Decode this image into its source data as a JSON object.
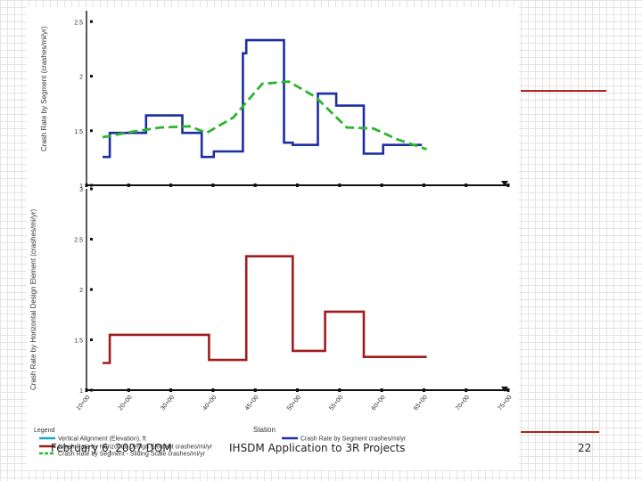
{
  "colors": {
    "segment": "#1c2fa0",
    "trend": "#2db52d",
    "horizontal": "#a01c1c",
    "legend_vertical": "#1aa6c9",
    "accent": "#b22222"
  },
  "footer": {
    "date": "February 6, 2007 DQM",
    "title": "IHSDM Application to 3R Projects",
    "page": "22"
  },
  "chart_data": [
    {
      "type": "line",
      "step": true,
      "ylabel": "Crash Rate by Segment (crashes/mi/yr)",
      "ylim": [
        1,
        2.6
      ],
      "yticks": [
        "1",
        "1.5",
        "2",
        "2.5"
      ],
      "xlim": [
        0,
        75
      ],
      "series": [
        {
          "name": "Crash Rate by Segment",
          "style": "step",
          "x": [
            0,
            1.5,
            1.5,
            9,
            9,
            16.5,
            16.5,
            20.5,
            20.5,
            23,
            23,
            29,
            29,
            29.7,
            29.7,
            37.5,
            37.5,
            39.3,
            39.3,
            44.5,
            44.5,
            48.3,
            48.3,
            54,
            54,
            58,
            58,
            66
          ],
          "values": [
            1.26,
            1.26,
            1.48,
            1.48,
            1.64,
            1.64,
            1.48,
            1.48,
            1.26,
            1.26,
            1.31,
            1.31,
            2.21,
            2.21,
            2.33,
            2.33,
            1.39,
            1.39,
            1.37,
            1.37,
            1.84,
            1.84,
            1.73,
            1.73,
            1.29,
            1.29,
            1.37,
            1.37
          ]
        },
        {
          "name": "Crash Rate by Segment - Sliding Scale",
          "style": "dashed",
          "x": [
            0,
            6,
            12,
            18,
            21.5,
            27,
            33,
            38.5,
            44,
            50.5,
            56,
            61,
            67
          ],
          "values": [
            1.44,
            1.49,
            1.53,
            1.54,
            1.48,
            1.62,
            1.93,
            1.95,
            1.81,
            1.53,
            1.52,
            1.42,
            1.33
          ]
        }
      ]
    },
    {
      "type": "line",
      "step": true,
      "xlabel": "Station",
      "ylabel": "Crash Rate by Horizontal Design Element (crashes/mi/yr)",
      "ylim": [
        1,
        3
      ],
      "yticks": [
        "1",
        "1.5",
        "2",
        "2.5",
        "3"
      ],
      "xlim": [
        0,
        75
      ],
      "xticks": [
        "10+00",
        "20+00",
        "30+00",
        "40+00",
        "45+00",
        "50+00",
        "55+00",
        "60+00",
        "65+00",
        "70+00",
        "75+00"
      ],
      "series": [
        {
          "name": "Crash Rate by Horizontal Design Element",
          "style": "step",
          "x": [
            0,
            1.5,
            1.5,
            22,
            22,
            29.7,
            29.7,
            39.3,
            39.3,
            46,
            46,
            54,
            54,
            67
          ],
          "values": [
            1.27,
            1.27,
            1.55,
            1.55,
            1.3,
            1.3,
            2.33,
            2.33,
            1.39,
            1.39,
            1.78,
            1.78,
            1.33,
            1.33
          ]
        }
      ]
    }
  ],
  "legend": {
    "title": "Legend",
    "items": [
      {
        "label": "Vertical Alignment (Elevation), ft",
        "color_key": "legend_vertical",
        "dash": false
      },
      {
        "label": "Crash Rate by Segment crashes/mi/yr",
        "color_key": "segment",
        "dash": false
      },
      {
        "label": "Crash Rate by Horizontal Design Element crashes/mi/yr",
        "color_key": "horizontal",
        "dash": false
      },
      {
        "label": "Crash Rate by Segment - Sliding Scale crashes/mi/yr",
        "color_key": "trend",
        "dash": true
      }
    ]
  }
}
